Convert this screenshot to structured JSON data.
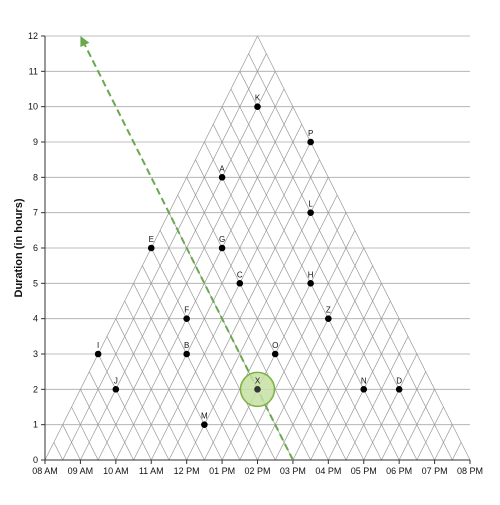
{
  "chart_data": {
    "type": "scatter",
    "title": "",
    "xlabel": "",
    "ylabel": "Duration (in hours)",
    "x_tick_labels": [
      "08 AM",
      "09 AM",
      "10 AM",
      "11 AM",
      "12 PM",
      "01 PM",
      "02 PM",
      "03 PM",
      "04 PM",
      "05 PM",
      "06 PM",
      "07 PM",
      "08 PM"
    ],
    "xlim": [
      0,
      12
    ],
    "ylim": [
      0,
      12
    ],
    "y_ticks": [
      0,
      1,
      2,
      3,
      4,
      5,
      6,
      7,
      8,
      9,
      10,
      11,
      12
    ],
    "horizontal_grid": true,
    "triangular_grid": true,
    "points": [
      {
        "label": "K",
        "x": 6.0,
        "y": 10
      },
      {
        "label": "P",
        "x": 7.5,
        "y": 9
      },
      {
        "label": "A",
        "x": 5.0,
        "y": 8
      },
      {
        "label": "L",
        "x": 7.5,
        "y": 7
      },
      {
        "label": "E",
        "x": 3.0,
        "y": 6
      },
      {
        "label": "G",
        "x": 5.0,
        "y": 6
      },
      {
        "label": "C",
        "x": 5.5,
        "y": 5
      },
      {
        "label": "H",
        "x": 7.5,
        "y": 5
      },
      {
        "label": "F",
        "x": 4.0,
        "y": 4
      },
      {
        "label": "Z",
        "x": 8.0,
        "y": 4
      },
      {
        "label": "I",
        "x": 1.5,
        "y": 3
      },
      {
        "label": "B",
        "x": 4.0,
        "y": 3
      },
      {
        "label": "O",
        "x": 6.5,
        "y": 3
      },
      {
        "label": "J",
        "x": 2.0,
        "y": 2
      },
      {
        "label": "X",
        "x": 6.0,
        "y": 2
      },
      {
        "label": "N",
        "x": 9.0,
        "y": 2
      },
      {
        "label": "D",
        "x": 10.0,
        "y": 2
      },
      {
        "label": "M",
        "x": 4.5,
        "y": 1
      }
    ],
    "highlighted_point": "X",
    "arrow": {
      "from": [
        7.0,
        0
      ],
      "to": [
        1.0,
        12
      ],
      "style": "dashed",
      "color": "#6aa84f"
    },
    "colors": {
      "point": "#000000",
      "grid": "#999999",
      "highlight_fill": "#c5e1a5",
      "highlight_stroke": "#7cb342",
      "arrow": "#6aa84f"
    }
  }
}
